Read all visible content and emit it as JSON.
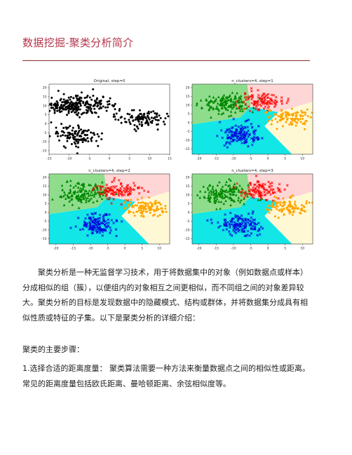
{
  "document": {
    "title": "数据挖掘-聚类分析简介",
    "paragraphs": [
      "聚类分析是一种无监督学习技术，用于将数据集中的对象（例如数据点或样本）分成相似的组（簇），以便组内的对象相互之间更相似，而不同组之间的对象差异较大。聚类分析的目标是发现数据中的隐藏模式、结构或群体，并将数据集分成具有相似性质或特征的子集。以下是聚类分析的详细介绍：",
      "聚类的主要步骤：",
      "1.选择合适的距离度量： 聚类算法需要一种方法来衡量数据点之间的相似性或距离。常见的距离度量包括欧氏距离、曼哈顿距离、余弦相似度等。"
    ]
  },
  "chart_data": [
    {
      "type": "scatter",
      "title": "Original, step=0",
      "xlim": [
        -15,
        15
      ],
      "ylim": [
        -17,
        22
      ],
      "xticks": [
        "-15",
        "-10",
        "-5",
        "0",
        "5",
        "10",
        "15"
      ],
      "yticks": [
        "20",
        "15",
        "10",
        "5",
        "0",
        "-5",
        "-10",
        "-15"
      ],
      "series": [
        {
          "color": "#000000",
          "marker": "dot",
          "center": [
            -11,
            10
          ],
          "spread": [
            3.2,
            2.5
          ],
          "count": 120
        },
        {
          "color": "#000000",
          "marker": "dot",
          "center": [
            -5,
            10.5
          ],
          "spread": [
            3.5,
            2.8
          ],
          "count": 120
        },
        {
          "color": "#000000",
          "marker": "dot",
          "center": [
            8.5,
            2.5
          ],
          "spread": [
            3.2,
            2.5
          ],
          "count": 110
        },
        {
          "color": "#000000",
          "marker": "dot",
          "center": [
            -8,
            -7
          ],
          "spread": [
            3.0,
            3.0
          ],
          "count": 120
        }
      ],
      "grid": false
    },
    {
      "type": "scatter",
      "title": "n_clusters=4, step=1",
      "xlim": [
        -22,
        13
      ],
      "ylim": [
        -18,
        22
      ],
      "xticks": [
        "-20",
        "-15",
        "-10",
        "-5",
        "0",
        "5",
        "10"
      ],
      "yticks": [
        "20",
        "15",
        "10",
        "5",
        "0",
        "-5",
        "-10",
        "-15"
      ],
      "regions": [
        "#8fdd8c",
        "#ffd6d6",
        "#fff8d5",
        "#12e6e6"
      ],
      "series": [
        {
          "color": "#008800",
          "marker": "triangle",
          "center": [
            -12,
            11
          ],
          "spread": [
            3.5,
            3.0
          ],
          "count": 150
        },
        {
          "color": "#ff0000",
          "marker": "x",
          "center": [
            -2,
            12.5
          ],
          "spread": [
            3.0,
            2.5
          ],
          "count": 110
        },
        {
          "color": "#ffa500",
          "marker": "dot",
          "center": [
            6,
            3
          ],
          "spread": [
            3.0,
            2.5
          ],
          "count": 100
        },
        {
          "color": "#0000dd",
          "marker": "x",
          "center": [
            -8,
            -7
          ],
          "spread": [
            3.0,
            3.0
          ],
          "count": 140
        }
      ],
      "grid": false
    },
    {
      "type": "scatter",
      "title": "n_clusters=4, step=2",
      "xlim": [
        -22,
        13
      ],
      "ylim": [
        -18,
        22
      ],
      "xticks": [
        "-20",
        "-15",
        "-10",
        "-5",
        "0",
        "5",
        "10"
      ],
      "yticks": [
        "20",
        "15",
        "10",
        "5",
        "0",
        "-5",
        "-10",
        "-15"
      ],
      "regions": [
        "#8fdd8c",
        "#ffd6d6",
        "#fff8d5",
        "#12e6e6"
      ],
      "series": [
        {
          "color": "#008800",
          "marker": "triangle",
          "center": [
            -12,
            11
          ],
          "spread": [
            3.5,
            3.0
          ],
          "count": 150
        },
        {
          "color": "#ff0000",
          "marker": "x",
          "center": [
            -2,
            12.5
          ],
          "spread": [
            3.0,
            2.5
          ],
          "count": 110
        },
        {
          "color": "#ffa500",
          "marker": "dot",
          "center": [
            6,
            3
          ],
          "spread": [
            3.0,
            2.5
          ],
          "count": 100
        },
        {
          "color": "#0000dd",
          "marker": "x",
          "center": [
            -8,
            -7
          ],
          "spread": [
            3.0,
            3.0
          ],
          "count": 140
        }
      ],
      "grid": false
    },
    {
      "type": "scatter",
      "title": "n_clusters=4, step=3",
      "xlim": [
        -22,
        13
      ],
      "ylim": [
        -18,
        22
      ],
      "xticks": [
        "-20",
        "-15",
        "-10",
        "-5",
        "0",
        "5",
        "10"
      ],
      "yticks": [
        "20",
        "15",
        "10",
        "5",
        "0",
        "-5",
        "-10",
        "-15"
      ],
      "regions": [
        "#8fdd8c",
        "#ffd6d6",
        "#fff8d5",
        "#12e6e6"
      ],
      "series": [
        {
          "color": "#008800",
          "marker": "triangle",
          "center": [
            -12,
            11
          ],
          "spread": [
            3.5,
            3.0
          ],
          "count": 150
        },
        {
          "color": "#ff0000",
          "marker": "x",
          "center": [
            -2,
            12.5
          ],
          "spread": [
            3.0,
            2.5
          ],
          "count": 110
        },
        {
          "color": "#ffa500",
          "marker": "dot",
          "center": [
            6,
            3
          ],
          "spread": [
            3.0,
            2.5
          ],
          "count": 100
        },
        {
          "color": "#0000dd",
          "marker": "x",
          "center": [
            -8,
            -7
          ],
          "spread": [
            3.0,
            3.0
          ],
          "count": 140
        }
      ],
      "grid": false
    }
  ]
}
